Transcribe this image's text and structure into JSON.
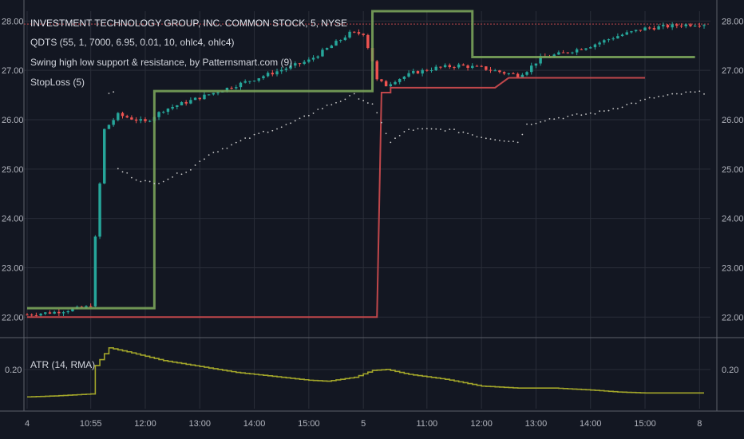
{
  "header": {
    "title": "INVESTMENT TECHNOLOGY GROUP, INC. COMMON STOCK, 5, NYSE",
    "studies": [
      "QDTS (55, 1, 7000, 6.95, 0.01, 10, ohlc4, ohlc4)",
      "Swing high low support & resistance, by Patternsmart.com (9)",
      "StopLoss (5)"
    ],
    "atr_label": "ATR (14, RMA)"
  },
  "colors": {
    "background": "#131722",
    "up": "#26a69a",
    "down": "#ef5350",
    "resistance": "#7aa35a",
    "support": "#c0474b",
    "atr": "#a3a62a",
    "dots": "#c8c8c8",
    "last_price_line": "#c0474b"
  },
  "chart_data": [
    {
      "type": "candlestick",
      "panel": "price",
      "ylim": [
        21.6,
        28.2
      ],
      "yticks": [
        "28.00",
        "27.00",
        "26.00",
        "25.00",
        "24.00",
        "23.00",
        "22.00"
      ],
      "ytick_values": [
        28,
        27,
        26,
        25,
        24,
        23,
        22
      ],
      "xticks": [
        "4",
        "10:55",
        "12:00",
        "13:00",
        "14:00",
        "15:00",
        "5",
        "11:00",
        "12:00",
        "13:00",
        "14:00",
        "15:00",
        "8"
      ],
      "xtick_positions": [
        0,
        14,
        26,
        38,
        50,
        62,
        74,
        88,
        100,
        112,
        124,
        136,
        148
      ],
      "num_bars": 150,
      "last_price": 27.94,
      "close_path": [
        [
          0,
          22.05
        ],
        [
          6,
          22.1
        ],
        [
          13,
          22.2
        ],
        [
          14,
          22.25
        ],
        [
          15,
          23.6
        ],
        [
          17,
          25.8
        ],
        [
          20,
          26.1
        ],
        [
          24,
          26.0
        ],
        [
          26,
          25.95
        ],
        [
          30,
          26.2
        ],
        [
          38,
          26.45
        ],
        [
          46,
          26.7
        ],
        [
          54,
          26.95
        ],
        [
          62,
          27.2
        ],
        [
          67,
          27.5
        ],
        [
          71,
          27.75
        ],
        [
          74,
          27.75
        ],
        [
          76,
          27.2
        ],
        [
          77,
          26.8
        ],
        [
          79,
          26.7
        ],
        [
          81,
          26.8
        ],
        [
          85,
          26.95
        ],
        [
          90,
          27.05
        ],
        [
          95,
          27.1
        ],
        [
          100,
          27.05
        ],
        [
          105,
          26.95
        ],
        [
          108,
          26.9
        ],
        [
          110,
          27.0
        ],
        [
          113,
          27.25
        ],
        [
          118,
          27.35
        ],
        [
          124,
          27.5
        ],
        [
          130,
          27.7
        ],
        [
          136,
          27.85
        ],
        [
          144,
          27.92
        ],
        [
          148,
          27.94
        ]
      ],
      "resistance_line": [
        [
          0,
          22.18
        ],
        [
          28,
          22.18
        ],
        [
          28,
          26.58
        ],
        [
          76,
          26.58
        ],
        [
          76,
          28.2
        ],
        [
          98,
          28.2
        ],
        [
          98,
          27.27
        ],
        [
          147,
          27.27
        ]
      ],
      "support_line": [
        [
          0,
          22.0
        ],
        [
          77,
          22.0
        ],
        [
          78,
          26.55
        ],
        [
          80,
          26.55
        ],
        [
          80,
          26.65
        ],
        [
          103,
          26.65
        ],
        [
          106,
          26.85
        ],
        [
          136,
          26.85
        ]
      ],
      "stoploss_dots": [
        [
          20,
          25.0
        ],
        [
          24,
          24.8
        ],
        [
          28,
          24.7
        ],
        [
          32,
          24.85
        ],
        [
          36,
          25.0
        ],
        [
          40,
          25.3
        ],
        [
          44,
          25.45
        ],
        [
          48,
          25.6
        ],
        [
          52,
          25.75
        ],
        [
          56,
          25.85
        ],
        [
          60,
          26.0
        ],
        [
          64,
          26.2
        ],
        [
          68,
          26.35
        ],
        [
          72,
          26.5
        ],
        [
          76,
          26.3
        ],
        [
          80,
          25.55
        ],
        [
          84,
          25.8
        ],
        [
          88,
          25.8
        ],
        [
          92,
          25.8
        ],
        [
          96,
          25.75
        ],
        [
          100,
          25.65
        ],
        [
          104,
          25.6
        ],
        [
          108,
          25.55
        ],
        [
          110,
          25.9
        ],
        [
          114,
          26.0
        ],
        [
          118,
          26.05
        ],
        [
          122,
          26.1
        ],
        [
          126,
          26.15
        ],
        [
          130,
          26.25
        ],
        [
          134,
          26.35
        ],
        [
          138,
          26.45
        ],
        [
          142,
          26.5
        ],
        [
          146,
          26.55
        ],
        [
          148,
          26.55
        ]
      ]
    },
    {
      "type": "line",
      "panel": "indicator",
      "name": "ATR (14, RMA)",
      "ylim": [
        0.0,
        0.35
      ],
      "yticks": [
        "0.20"
      ],
      "ytick_values": [
        0.2
      ],
      "atr_path": [
        [
          0,
          0.06
        ],
        [
          6,
          0.065
        ],
        [
          14,
          0.075
        ],
        [
          15,
          0.22
        ],
        [
          18,
          0.31
        ],
        [
          22,
          0.29
        ],
        [
          30,
          0.245
        ],
        [
          38,
          0.215
        ],
        [
          46,
          0.185
        ],
        [
          54,
          0.165
        ],
        [
          62,
          0.145
        ],
        [
          66,
          0.14
        ],
        [
          72,
          0.16
        ],
        [
          76,
          0.195
        ],
        [
          79,
          0.2
        ],
        [
          84,
          0.175
        ],
        [
          92,
          0.15
        ],
        [
          100,
          0.115
        ],
        [
          108,
          0.105
        ],
        [
          116,
          0.105
        ],
        [
          124,
          0.095
        ],
        [
          130,
          0.085
        ],
        [
          136,
          0.08
        ],
        [
          146,
          0.08
        ]
      ]
    }
  ]
}
